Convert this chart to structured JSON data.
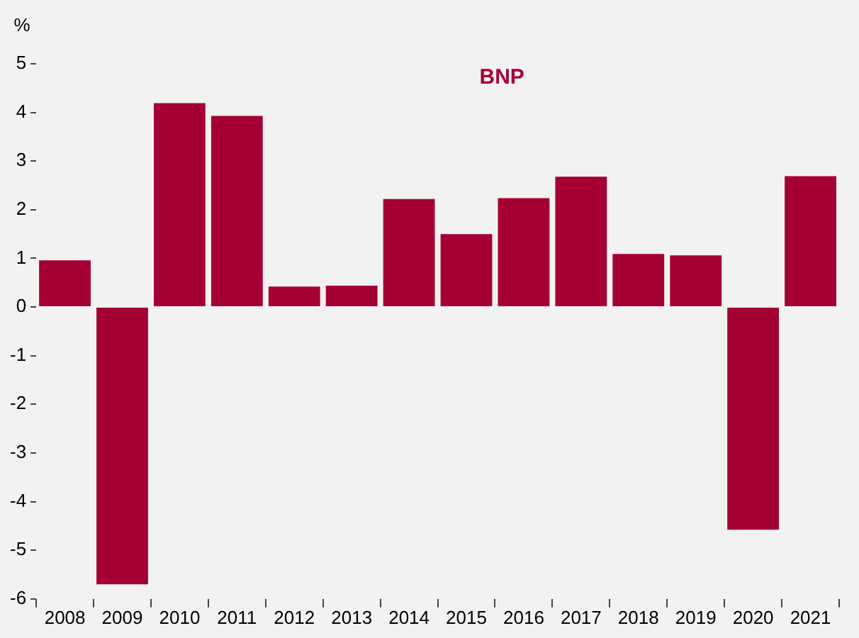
{
  "chart_data": {
    "type": "bar",
    "title": "BNP",
    "ylabel": "%",
    "categories": [
      "2008",
      "2009",
      "2010",
      "2011",
      "2012",
      "2013",
      "2014",
      "2015",
      "2016",
      "2017",
      "2018",
      "2019",
      "2020",
      "2021"
    ],
    "values": [
      0.96,
      -5.7,
      4.19,
      3.93,
      0.42,
      0.44,
      2.22,
      1.5,
      2.24,
      2.68,
      1.09,
      1.06,
      -4.58,
      2.69
    ],
    "color": "#a50034",
    "ylim": [
      -6,
      5
    ],
    "yticks": [
      -6,
      -5,
      -4,
      -3,
      -2,
      -1,
      0,
      1,
      2,
      3,
      4,
      5
    ],
    "grid": false,
    "legend": false
  }
}
